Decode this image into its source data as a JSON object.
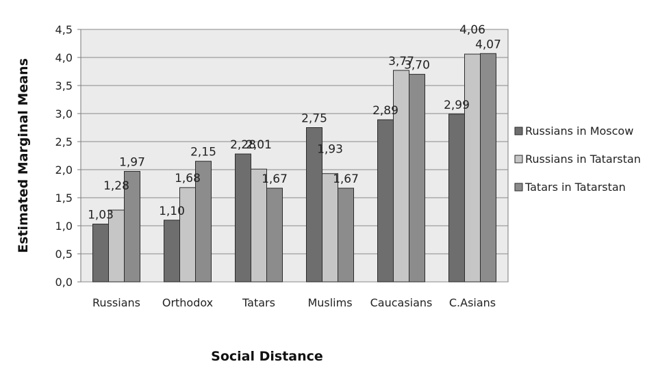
{
  "chart_data": {
    "type": "bar",
    "title": "",
    "xlabel": "Social Distance",
    "ylabel": "Estimated Marginal Means",
    "categories": [
      "Russians",
      "Orthodox",
      "Tatars",
      "Muslims",
      "Caucasians",
      "C.Asians"
    ],
    "series": [
      {
        "name": "Russians in Moscow",
        "color": "#6e6e6e",
        "values": [
          1.03,
          1.1,
          2.28,
          2.75,
          2.89,
          2.99
        ],
        "value_labels": [
          "1,03",
          "1,10",
          "2,28",
          "2,75",
          "2,89",
          "2,99"
        ]
      },
      {
        "name": "Russians in Tatarstan",
        "color": "#c6c6c6",
        "values": [
          1.28,
          1.68,
          2.01,
          1.93,
          3.77,
          4.06
        ],
        "value_labels": [
          "1,28",
          "1,68",
          "2,01",
          "1,93",
          "3,77",
          "4,06"
        ]
      },
      {
        "name": "Tatars in Tatarstan",
        "color": "#8c8c8c",
        "values": [
          1.97,
          2.15,
          1.67,
          1.67,
          3.7,
          4.07
        ],
        "value_labels": [
          "1,97",
          "2,15",
          "1,67",
          "1,67",
          "3,70",
          "4,07"
        ]
      }
    ],
    "ylim": [
      0,
      4.5
    ],
    "yticks": [
      0,
      0.5,
      1.0,
      1.5,
      2.0,
      2.5,
      3.0,
      3.5,
      4.0,
      4.5
    ],
    "ytick_labels": [
      "0,0",
      "0,5",
      "1,0",
      "1,5",
      "2,0",
      "2,5",
      "3,0",
      "3,5",
      "4,0",
      "4,5"
    ],
    "grid": true,
    "plot_background": "#ebebeb",
    "legend_position": "right"
  }
}
